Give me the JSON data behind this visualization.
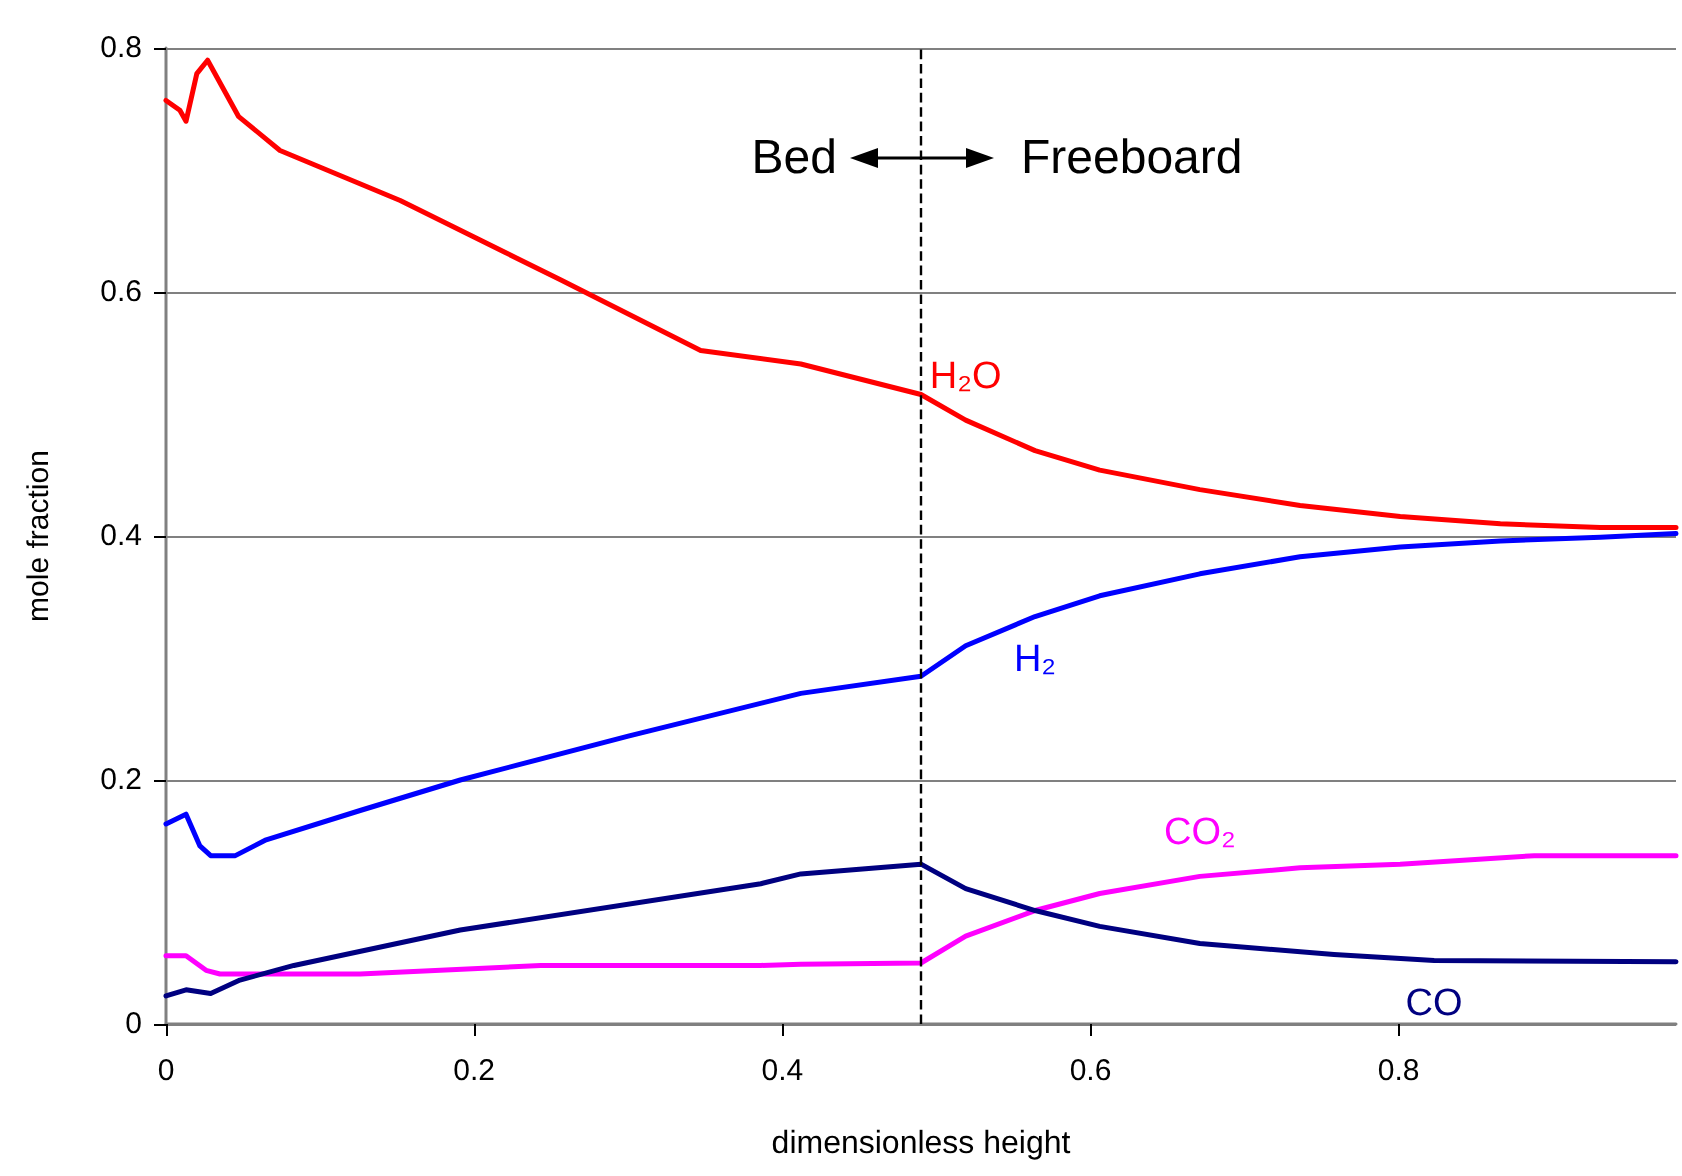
{
  "chart_data": {
    "type": "line",
    "xlabel": "dimensionless height",
    "ylabel": "mole fraction",
    "xlim": [
      0,
      0.98
    ],
    "xticks": [
      0,
      0.2,
      0.4,
      0.6,
      0.8
    ],
    "ylim": [
      0,
      0.8
    ],
    "yticks": [
      0,
      0.2,
      0.4,
      0.6,
      0.8
    ],
    "grid": "y",
    "legend": false,
    "marker": "none",
    "line_style": "solid",
    "annotations": [
      "Bed",
      "Freeboard"
    ],
    "ref_lines": [
      {
        "axis": "x",
        "value": 0.49,
        "color": "#000000",
        "line_style": "dashed"
      }
    ],
    "series": [
      {
        "name": "H₂O",
        "color": "#ff0000",
        "x": [
          0,
          0.009,
          0.013,
          0.02,
          0.027,
          0.047,
          0.074,
          0.152,
          0.256,
          0.347,
          0.412,
          0.49,
          0.519,
          0.564,
          0.606,
          0.671,
          0.736,
          0.801,
          0.866,
          0.931,
          0.98
        ],
        "values": [
          0.757,
          0.749,
          0.74,
          0.779,
          0.79,
          0.744,
          0.716,
          0.675,
          0.61,
          0.552,
          0.541,
          0.516,
          0.495,
          0.47,
          0.454,
          0.438,
          0.425,
          0.416,
          0.41,
          0.407,
          0.407
        ]
      },
      {
        "name": "H₂",
        "color": "#0000ff",
        "x": [
          0,
          0.013,
          0.022,
          0.029,
          0.045,
          0.065,
          0.126,
          0.191,
          0.3,
          0.412,
          0.49,
          0.519,
          0.564,
          0.606,
          0.671,
          0.736,
          0.801,
          0.866,
          0.931,
          0.98
        ],
        "values": [
          0.164,
          0.172,
          0.146,
          0.138,
          0.138,
          0.151,
          0.175,
          0.2,
          0.236,
          0.271,
          0.285,
          0.31,
          0.334,
          0.351,
          0.369,
          0.383,
          0.391,
          0.396,
          0.399,
          0.402
        ]
      },
      {
        "name": "CO₂",
        "color": "#ff00ff",
        "x": [
          0,
          0.013,
          0.026,
          0.035,
          0.126,
          0.243,
          0.386,
          0.412,
          0.49,
          0.519,
          0.564,
          0.606,
          0.671,
          0.736,
          0.801,
          0.888,
          0.98
        ],
        "values": [
          0.056,
          0.056,
          0.044,
          0.041,
          0.041,
          0.048,
          0.048,
          0.049,
          0.05,
          0.072,
          0.093,
          0.107,
          0.121,
          0.128,
          0.131,
          0.138,
          0.138
        ]
      },
      {
        "name": "CO",
        "color": "#000080",
        "x": [
          0,
          0.013,
          0.029,
          0.048,
          0.083,
          0.191,
          0.386,
          0.412,
          0.49,
          0.519,
          0.564,
          0.606,
          0.671,
          0.758,
          0.823,
          0.98
        ],
        "values": [
          0.023,
          0.028,
          0.025,
          0.036,
          0.048,
          0.077,
          0.115,
          0.123,
          0.131,
          0.111,
          0.093,
          0.08,
          0.066,
          0.057,
          0.052,
          0.051
        ]
      }
    ]
  }
}
